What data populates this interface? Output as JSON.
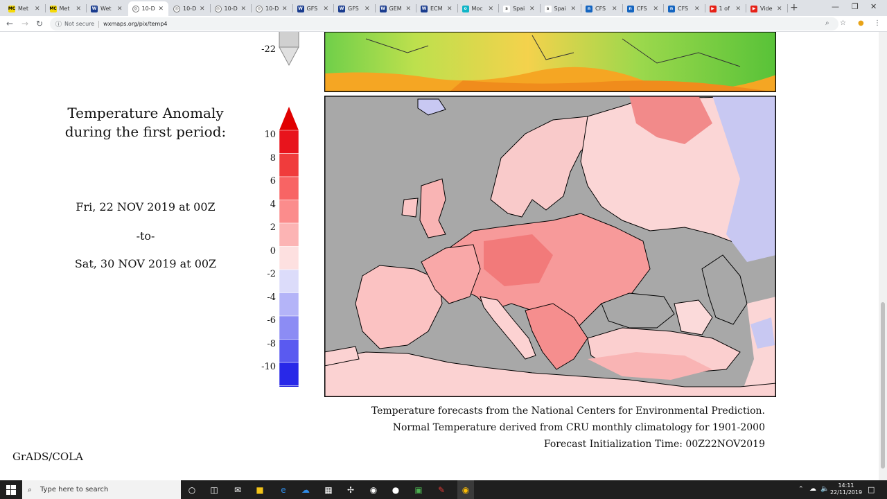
{
  "browser": {
    "tabs": [
      {
        "title": "Met",
        "favicon": "MC",
        "color": "#f5d90a",
        "text": "#000"
      },
      {
        "title": "Met",
        "favicon": "MC",
        "color": "#f5d90a",
        "text": "#000"
      },
      {
        "title": "Wet",
        "favicon": "W",
        "color": "#1a3c8e",
        "text": "#fff"
      },
      {
        "title": "10-D",
        "favicon": "globe",
        "color": "#ffffff",
        "text": "#555",
        "active": true
      },
      {
        "title": "10-D",
        "favicon": "globe",
        "color": "#ffffff",
        "text": "#555"
      },
      {
        "title": "10-D",
        "favicon": "globe",
        "color": "#ffffff",
        "text": "#555"
      },
      {
        "title": "10-D",
        "favicon": "globe",
        "color": "#ffffff",
        "text": "#555"
      },
      {
        "title": "GFS",
        "favicon": "W",
        "color": "#1a3c8e",
        "text": "#fff"
      },
      {
        "title": "GFS",
        "favicon": "W",
        "color": "#1a3c8e",
        "text": "#fff"
      },
      {
        "title": "GEM",
        "favicon": "W",
        "color": "#1a3c8e",
        "text": "#fff"
      },
      {
        "title": "ECM",
        "favicon": "W",
        "color": "#1a3c8e",
        "text": "#fff"
      },
      {
        "title": "Moc",
        "favicon": "o",
        "color": "#10b5c7",
        "text": "#fff"
      },
      {
        "title": "Spai",
        "favicon": "s",
        "color": "#ffffff",
        "text": "#333"
      },
      {
        "title": "Spai",
        "favicon": "s",
        "color": "#ffffff",
        "text": "#333"
      },
      {
        "title": "CFS",
        "favicon": "n",
        "color": "#1565c0",
        "text": "#fff"
      },
      {
        "title": "CFS",
        "favicon": "n",
        "color": "#1565c0",
        "text": "#fff"
      },
      {
        "title": "CFS",
        "favicon": "n",
        "color": "#1565c0",
        "text": "#fff"
      },
      {
        "title": "1 of",
        "favicon": "▶",
        "color": "#e62117",
        "text": "#fff"
      },
      {
        "title": "Vide",
        "favicon": "▶",
        "color": "#e62117",
        "text": "#fff"
      }
    ],
    "security_label": "Not secure",
    "url": "wxmaps.org/pix/temp4"
  },
  "page": {
    "heading_line1": "Temperature Anomaly",
    "heading_line2": "during the first period:",
    "period_start": "Fri, 22 NOV 2019 at 00Z",
    "period_sep": "-to-",
    "period_end": "Sat, 30 NOV 2019 at 00Z",
    "top_legend_label": "-22",
    "legend": {
      "ticks": [
        "10",
        "8",
        "6",
        "4",
        "2",
        "0",
        "-2",
        "-4",
        "-6",
        "-8",
        "-10"
      ],
      "colors": [
        "#e8141c",
        "#f03c3c",
        "#f86464",
        "#fb8c8c",
        "#fcb4b4",
        "#fde0e0",
        "#dcdcfa",
        "#b4b4f8",
        "#8c8cf4",
        "#5a5af0",
        "#2828e8",
        "#0a0ad8"
      ],
      "top_arrow_color": "#e00000",
      "bottom_arrow_color": "#0000d0"
    },
    "footer_line1": "Temperature forecasts from the National Centers for Environmental Prediction.",
    "footer_line2": "Normal Temperature derived from CRU monthly climatology for 1901-2000",
    "footer_line3": "Forecast Initialization Time: 00Z22NOV2019",
    "credit": "GrADS/COLA"
  },
  "taskbar": {
    "search_placeholder": "Type here to search",
    "time": "14:11",
    "date": "22/11/2019"
  }
}
